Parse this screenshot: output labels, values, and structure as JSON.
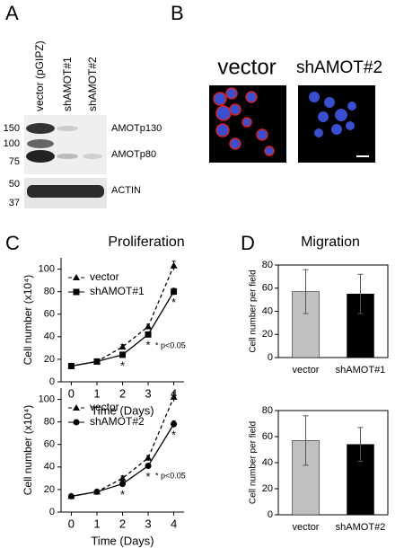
{
  "panels": {
    "a": {
      "letter": "A",
      "lanes": [
        "vector (pGIPZ)",
        "shAMOT#1",
        "shAMOT#2"
      ],
      "markers": [
        150,
        100,
        75,
        50,
        37
      ],
      "bands": [
        "AMOTp130",
        "AMOTp80",
        "ACTIN"
      ]
    },
    "b": {
      "letter": "B",
      "images": [
        "vector",
        "shAMOT#2"
      ]
    },
    "c": {
      "letter": "C"
    },
    "d": {
      "letter": "D"
    }
  },
  "chart_data": [
    {
      "type": "line",
      "title": "Proliferation",
      "xlabel": "Time (Days)",
      "ylabel": "Cell number (x10⁴)",
      "x": [
        0,
        1,
        2,
        3,
        4
      ],
      "xlim": [
        -0.4,
        4.4
      ],
      "xticks": [
        0,
        1,
        2,
        3,
        4
      ],
      "ylim": [
        0,
        110
      ],
      "yticks": [
        0,
        20,
        40,
        60,
        80,
        100
      ],
      "legend": "upper left",
      "series": [
        {
          "name": "vector",
          "color": "#000000",
          "marker": "triangle",
          "dash": true,
          "values": [
            14,
            18,
            31,
            49,
            103
          ],
          "errors": [
            1,
            1,
            2,
            2,
            4
          ]
        },
        {
          "name": "shAMOT#1",
          "color": "#000000",
          "marker": "square",
          "dash": false,
          "values": [
            14,
            18,
            24,
            42,
            80
          ],
          "errors": [
            1,
            1,
            2,
            2,
            3
          ]
        }
      ],
      "annotations": [
        {
          "x": 2,
          "text": "*"
        },
        {
          "x": 3,
          "text": "*"
        },
        {
          "x": 4,
          "text": "*"
        }
      ],
      "note": "* p<0.05"
    },
    {
      "type": "line",
      "xlabel": "Time (Days)",
      "ylabel": "Cell number (x10⁴)",
      "x": [
        0,
        1,
        2,
        3,
        4
      ],
      "xlim": [
        -0.4,
        4.4
      ],
      "xticks": [
        0,
        1,
        2,
        3,
        4
      ],
      "ylim": [
        0,
        110
      ],
      "yticks": [
        0,
        20,
        40,
        60,
        80,
        100
      ],
      "legend": "upper left",
      "series": [
        {
          "name": "vector",
          "color": "#000000",
          "marker": "triangle",
          "dash": true,
          "values": [
            14,
            18,
            30,
            48,
            102
          ],
          "errors": [
            1,
            1,
            2,
            2,
            4
          ]
        },
        {
          "name": "shAMOT#2",
          "color": "#000000",
          "marker": "circle",
          "dash": false,
          "values": [
            14,
            18,
            25,
            41,
            78
          ],
          "errors": [
            1,
            1,
            2,
            2,
            3
          ]
        }
      ],
      "annotations": [
        {
          "x": 2,
          "text": "*"
        },
        {
          "x": 3,
          "text": "*"
        },
        {
          "x": 4,
          "text": "*"
        }
      ],
      "note": "* p<0.05"
    },
    {
      "type": "bar",
      "title": "Migration",
      "ylabel": "Cell number per field",
      "categories": [
        "vector",
        "shAMOT#1"
      ],
      "values": [
        57,
        55
      ],
      "errors": [
        19,
        17
      ],
      "colors": [
        "#c0c0c0",
        "#000000"
      ],
      "ylim": [
        0,
        80
      ],
      "yticks": [
        0,
        20,
        40,
        60,
        80
      ]
    },
    {
      "type": "bar",
      "ylabel": "Cell number per field",
      "categories": [
        "vector",
        "shAMOT#2"
      ],
      "values": [
        57,
        54
      ],
      "errors": [
        19,
        13
      ],
      "colors": [
        "#c0c0c0",
        "#000000"
      ],
      "ylim": [
        0,
        80
      ],
      "yticks": [
        0,
        20,
        40,
        60,
        80
      ]
    }
  ]
}
